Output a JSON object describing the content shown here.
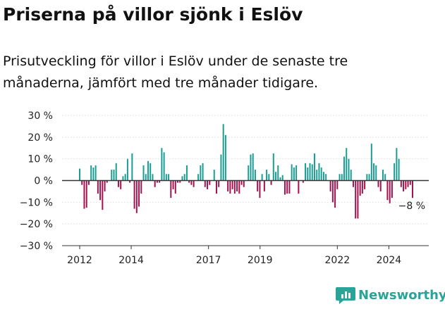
{
  "title": "Priserna på villor sjönk i Eslöv",
  "subtitle": "Prisutveckling för villor i Eslöv under de senaste tre månaderna, jämfört med tre månader tidigare.",
  "brand": {
    "name": "Newsworthy"
  },
  "colors": {
    "positive": "#1a9e93",
    "negative": "#a3134f",
    "axis": "#333333",
    "grid": "#dddddd",
    "brand": "#2aa398"
  },
  "chart_data": {
    "type": "bar",
    "title": "Priserna på villor sjönk i Eslöv",
    "ylim": [
      -30,
      30
    ],
    "y_ticks": [
      30,
      20,
      10,
      0,
      -10,
      -20,
      -30
    ],
    "y_tick_labels": [
      "30 %",
      "20 %",
      "10 %",
      "0 %",
      "−10 %",
      "−20 %",
      "−30 %"
    ],
    "x_ticks": [
      2012,
      2014,
      2017,
      2019,
      2022,
      2024
    ],
    "x_tick_labels": [
      "2012",
      "2014",
      "2017",
      "2019",
      "2022",
      "2024"
    ],
    "x_start": 2012.0,
    "x_end": 2024.92,
    "frequency": "monthly",
    "grid": true,
    "annotation": {
      "label": "−8 %",
      "value": -8
    },
    "values": [
      5.5,
      -2,
      -13,
      -12.5,
      -2,
      7,
      6,
      7,
      -6,
      -9,
      -13.5,
      -5,
      -1,
      0,
      5,
      5,
      8,
      -3,
      -4,
      2,
      3,
      10,
      -1,
      12.5,
      -13,
      -15,
      -12,
      -6,
      7,
      3,
      9,
      8,
      3,
      -3,
      -1,
      -1,
      15,
      13,
      3,
      3,
      -8,
      -4,
      -6,
      -1,
      -1,
      2,
      3,
      7,
      -1,
      -2,
      -3,
      0,
      3,
      7,
      8,
      -3,
      -4,
      -2,
      0,
      5,
      -6,
      -3,
      12,
      26,
      21,
      -5,
      -6,
      -4,
      -6,
      -5,
      -6,
      -2,
      -3,
      0,
      7,
      12,
      12.5,
      5,
      -5,
      -8,
      3,
      -5,
      5,
      3,
      -2,
      12.5,
      4,
      7,
      1.5,
      2.5,
      -6.5,
      -6,
      -6,
      7.5,
      6,
      7,
      -6,
      0,
      -1,
      8,
      6,
      8,
      7.5,
      12.5,
      5,
      8,
      6,
      4,
      3,
      0,
      -5,
      -10,
      -12.5,
      -4,
      3,
      3,
      11,
      15,
      10,
      5,
      -3,
      -17.5,
      -17.5,
      -7,
      -6,
      -4,
      3,
      3,
      17,
      8,
      7,
      -3,
      -5,
      5,
      3,
      -9,
      -10.5,
      -8,
      8,
      15,
      10,
      -3,
      -5,
      -4,
      -3,
      -2,
      -8
    ]
  }
}
